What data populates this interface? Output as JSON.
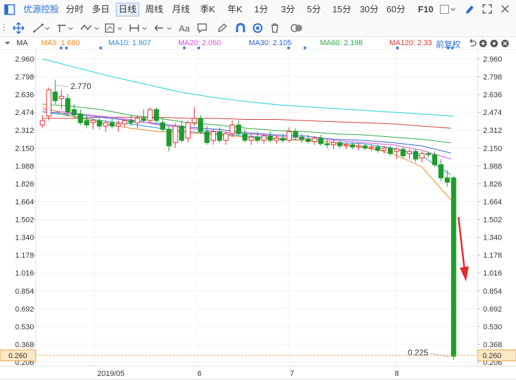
{
  "toolbar": {
    "stock_name": "优源控股",
    "periods": [
      "分时",
      "多日",
      "日线",
      "周线",
      "月线",
      "季K",
      "年K",
      "1分",
      "3分",
      "5分",
      "15分",
      "30分",
      "60分"
    ],
    "selected_period": "日线",
    "f10": "F10"
  },
  "drawbar": {
    "text_tool": "Aa"
  },
  "indicator_bar": {
    "name": "MA",
    "items": [
      {
        "label": "MA5: 1.680",
        "color": "#e8891c"
      },
      {
        "label": "MA10: 1.907",
        "color": "#2c8fd6"
      },
      {
        "label": "MA20: 2.050",
        "color": "#d64fd6"
      },
      {
        "label": "MA30: 2.105",
        "color": "#2c5fd6"
      },
      {
        "label": "MA60: 2.198",
        "color": "#2aa84a"
      },
      {
        "label": "MA120: 2.33",
        "color": "#d63a3a"
      }
    ],
    "adjust": "前复权"
  },
  "chart_data": {
    "type": "candlestick",
    "y_ticks": [
      "2.960",
      "2.798",
      "2.636",
      "2.474",
      "2.312",
      "2.150",
      "1.988",
      "1.826",
      "1.664",
      "1.502",
      "1.340",
      "1.178",
      "1.016",
      "0.854",
      "0.692",
      "0.530",
      "0.368",
      "0.206"
    ],
    "ylim": [
      0.206,
      2.96
    ],
    "x_labels": [
      "2019/05",
      "6",
      "7",
      "8"
    ],
    "annotations": {
      "high_label": "2.770",
      "low_label": "0.225"
    },
    "current_price": "0.260",
    "ma_lines": [
      {
        "name": "MA120",
        "color": "#d63a3a",
        "values": [
          2.42,
          2.42,
          2.43,
          2.43,
          2.43,
          2.42,
          2.42,
          2.41,
          2.41,
          2.4,
          2.39,
          2.38,
          2.37,
          2.35,
          2.33
        ]
      },
      {
        "name": "MA60",
        "color": "#2aa84a",
        "values": [
          2.55,
          2.53,
          2.5,
          2.45,
          2.42,
          2.38,
          2.36,
          2.33,
          2.31,
          2.3,
          2.28,
          2.27,
          2.25,
          2.23,
          2.198
        ]
      },
      {
        "name": "MA30",
        "color": "#2c5fd6",
        "values": [
          2.48,
          2.46,
          2.43,
          2.4,
          2.37,
          2.34,
          2.32,
          2.29,
          2.27,
          2.26,
          2.23,
          2.22,
          2.2,
          2.17,
          2.105
        ]
      },
      {
        "name": "MA20",
        "color": "#d64fd6",
        "values": [
          2.5,
          2.47,
          2.44,
          2.41,
          2.36,
          2.33,
          2.3,
          2.28,
          2.26,
          2.24,
          2.22,
          2.2,
          2.18,
          2.13,
          2.05
        ]
      },
      {
        "name": "MA10",
        "color": "#2c8fd6",
        "values": [
          2.48,
          2.44,
          2.4,
          2.37,
          2.33,
          2.3,
          2.28,
          2.26,
          2.24,
          2.22,
          2.2,
          2.19,
          2.15,
          2.08,
          1.907
        ]
      },
      {
        "name": "MA5",
        "color": "#e8891c",
        "values": [
          2.52,
          2.44,
          2.38,
          2.33,
          2.3,
          2.29,
          2.27,
          2.25,
          2.23,
          2.22,
          2.2,
          2.16,
          2.1,
          1.98,
          1.68
        ]
      }
    ],
    "envelope_line": {
      "name": "cyan-line",
      "color": "#38d6e0",
      "values": [
        2.96,
        2.88,
        2.8,
        2.73,
        2.66,
        2.61,
        2.57,
        2.54,
        2.52,
        2.5,
        2.48,
        2.46,
        2.44
      ]
    },
    "candles": [
      {
        "o": 2.36,
        "h": 2.45,
        "l": 2.33,
        "c": 2.4
      },
      {
        "o": 2.44,
        "h": 2.7,
        "l": 2.4,
        "c": 2.68
      },
      {
        "o": 2.66,
        "h": 2.77,
        "l": 2.55,
        "c": 2.58
      },
      {
        "o": 2.6,
        "h": 2.68,
        "l": 2.5,
        "c": 2.62
      },
      {
        "o": 2.6,
        "h": 2.64,
        "l": 2.44,
        "c": 2.48
      },
      {
        "o": 2.5,
        "h": 2.55,
        "l": 2.42,
        "c": 2.45
      },
      {
        "o": 2.46,
        "h": 2.5,
        "l": 2.36,
        "c": 2.38
      },
      {
        "o": 2.4,
        "h": 2.44,
        "l": 2.33,
        "c": 2.36
      },
      {
        "o": 2.38,
        "h": 2.42,
        "l": 2.32,
        "c": 2.4
      },
      {
        "o": 2.4,
        "h": 2.43,
        "l": 2.32,
        "c": 2.35
      },
      {
        "o": 2.35,
        "h": 2.4,
        "l": 2.3,
        "c": 2.38
      },
      {
        "o": 2.38,
        "h": 2.42,
        "l": 2.33,
        "c": 2.35
      },
      {
        "o": 2.35,
        "h": 2.4,
        "l": 2.3,
        "c": 2.37
      },
      {
        "o": 2.37,
        "h": 2.41,
        "l": 2.34,
        "c": 2.4
      },
      {
        "o": 2.4,
        "h": 2.45,
        "l": 2.35,
        "c": 2.38
      },
      {
        "o": 2.38,
        "h": 2.44,
        "l": 2.33,
        "c": 2.42
      },
      {
        "o": 2.42,
        "h": 2.5,
        "l": 2.38,
        "c": 2.4
      },
      {
        "o": 2.4,
        "h": 2.52,
        "l": 2.38,
        "c": 2.5
      },
      {
        "o": 2.5,
        "h": 2.52,
        "l": 2.38,
        "c": 2.4
      },
      {
        "o": 2.38,
        "h": 2.42,
        "l": 2.3,
        "c": 2.32
      },
      {
        "o": 2.32,
        "h": 2.35,
        "l": 2.12,
        "c": 2.17
      },
      {
        "o": 2.2,
        "h": 2.38,
        "l": 2.15,
        "c": 2.35
      },
      {
        "o": 2.35,
        "h": 2.4,
        "l": 2.2,
        "c": 2.22
      },
      {
        "o": 2.24,
        "h": 2.4,
        "l": 2.2,
        "c": 2.38
      },
      {
        "o": 2.38,
        "h": 2.52,
        "l": 2.35,
        "c": 2.42
      },
      {
        "o": 2.42,
        "h": 2.45,
        "l": 2.28,
        "c": 2.3
      },
      {
        "o": 2.3,
        "h": 2.35,
        "l": 2.18,
        "c": 2.2
      },
      {
        "o": 2.22,
        "h": 2.32,
        "l": 2.18,
        "c": 2.3
      },
      {
        "o": 2.3,
        "h": 2.34,
        "l": 2.2,
        "c": 2.22
      },
      {
        "o": 2.22,
        "h": 2.3,
        "l": 2.18,
        "c": 2.28
      },
      {
        "o": 2.28,
        "h": 2.4,
        "l": 2.25,
        "c": 2.36
      },
      {
        "o": 2.36,
        "h": 2.4,
        "l": 2.26,
        "c": 2.28
      },
      {
        "o": 2.28,
        "h": 2.32,
        "l": 2.2,
        "c": 2.22
      },
      {
        "o": 2.22,
        "h": 2.28,
        "l": 2.18,
        "c": 2.25
      },
      {
        "o": 2.25,
        "h": 2.3,
        "l": 2.2,
        "c": 2.22
      },
      {
        "o": 2.22,
        "h": 2.28,
        "l": 2.19,
        "c": 2.26
      },
      {
        "o": 2.26,
        "h": 2.3,
        "l": 2.2,
        "c": 2.22
      },
      {
        "o": 2.22,
        "h": 2.27,
        "l": 2.19,
        "c": 2.24
      },
      {
        "o": 2.24,
        "h": 2.28,
        "l": 2.2,
        "c": 2.22
      },
      {
        "o": 2.22,
        "h": 2.34,
        "l": 2.2,
        "c": 2.3
      },
      {
        "o": 2.3,
        "h": 2.33,
        "l": 2.22,
        "c": 2.25
      },
      {
        "o": 2.25,
        "h": 2.28,
        "l": 2.2,
        "c": 2.23
      },
      {
        "o": 2.23,
        "h": 2.27,
        "l": 2.19,
        "c": 2.21
      },
      {
        "o": 2.21,
        "h": 2.26,
        "l": 2.18,
        "c": 2.24
      },
      {
        "o": 2.24,
        "h": 2.27,
        "l": 2.17,
        "c": 2.19
      },
      {
        "o": 2.19,
        "h": 2.23,
        "l": 2.15,
        "c": 2.18
      },
      {
        "o": 2.18,
        "h": 2.22,
        "l": 2.14,
        "c": 2.2
      },
      {
        "o": 2.2,
        "h": 2.22,
        "l": 2.15,
        "c": 2.17
      },
      {
        "o": 2.17,
        "h": 2.2,
        "l": 2.14,
        "c": 2.18
      },
      {
        "o": 2.18,
        "h": 2.2,
        "l": 2.14,
        "c": 2.16
      },
      {
        "o": 2.16,
        "h": 2.19,
        "l": 2.13,
        "c": 2.17
      },
      {
        "o": 2.17,
        "h": 2.19,
        "l": 2.13,
        "c": 2.15
      },
      {
        "o": 2.15,
        "h": 2.18,
        "l": 2.12,
        "c": 2.16
      },
      {
        "o": 2.16,
        "h": 2.18,
        "l": 2.11,
        "c": 2.13
      },
      {
        "o": 2.13,
        "h": 2.17,
        "l": 2.1,
        "c": 2.15
      },
      {
        "o": 2.15,
        "h": 2.17,
        "l": 2.08,
        "c": 2.1
      },
      {
        "o": 2.12,
        "h": 2.16,
        "l": 2.05,
        "c": 2.14
      },
      {
        "o": 2.14,
        "h": 2.16,
        "l": 2.06,
        "c": 2.08
      },
      {
        "o": 2.1,
        "h": 2.14,
        "l": 2.05,
        "c": 2.12
      },
      {
        "o": 2.12,
        "h": 2.14,
        "l": 2.02,
        "c": 2.05
      },
      {
        "o": 2.06,
        "h": 2.12,
        "l": 2.02,
        "c": 2.1
      },
      {
        "o": 2.1,
        "h": 2.12,
        "l": 2.06,
        "c": 2.09
      },
      {
        "o": 2.09,
        "h": 2.12,
        "l": 1.98,
        "c": 2.0
      },
      {
        "o": 2.0,
        "h": 2.05,
        "l": 1.85,
        "c": 1.88
      },
      {
        "o": 1.88,
        "h": 1.95,
        "l": 1.8,
        "c": 1.84
      },
      {
        "o": 1.88,
        "h": 1.9,
        "l": 0.225,
        "c": 0.26
      }
    ]
  }
}
